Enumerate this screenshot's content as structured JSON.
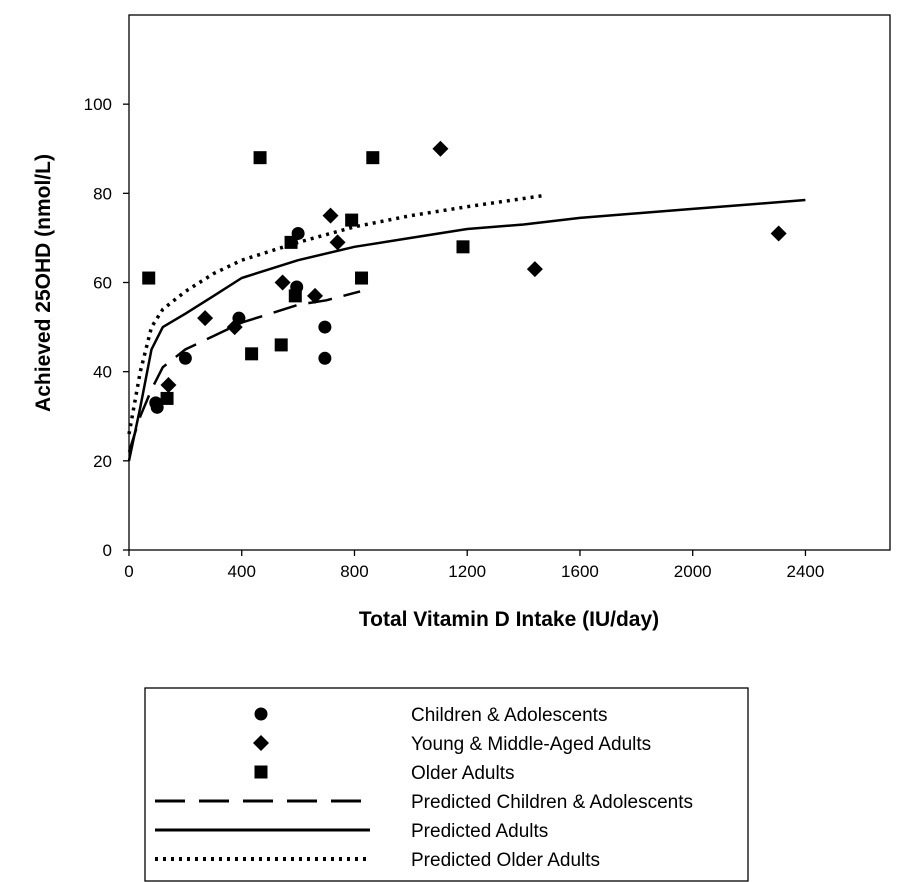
{
  "chart_data": {
    "type": "scatter",
    "xlabel": "Total Vitamin D Intake (IU/day)",
    "ylabel": "Achieved 25OHD (nmol/L)",
    "xlim": [
      0,
      2700
    ],
    "ylim": [
      0,
      120
    ],
    "xticks": [
      0,
      400,
      800,
      1200,
      1600,
      2000,
      2400
    ],
    "yticks": [
      0,
      20,
      40,
      60,
      80,
      100
    ],
    "grid": false,
    "legend_position": "bottom",
    "series": [
      {
        "name": "Children & Adolescents",
        "kind": "points",
        "marker": "circle",
        "color": "#000000",
        "points": [
          [
            95,
            33
          ],
          [
            100,
            32
          ],
          [
            200,
            43
          ],
          [
            390,
            52
          ],
          [
            595,
            59
          ],
          [
            600,
            71
          ],
          [
            695,
            43
          ],
          [
            695,
            50
          ]
        ]
      },
      {
        "name": "Young & Middle-Aged Adults",
        "kind": "points",
        "marker": "diamond",
        "color": "#000000",
        "points": [
          [
            140,
            37
          ],
          [
            270,
            52
          ],
          [
            375,
            50
          ],
          [
            545,
            60
          ],
          [
            660,
            57
          ],
          [
            715,
            75
          ],
          [
            740,
            69
          ],
          [
            1105,
            90
          ],
          [
            1440,
            63
          ],
          [
            2305,
            71
          ]
        ]
      },
      {
        "name": "Older Adults",
        "kind": "points",
        "marker": "square",
        "color": "#000000",
        "points": [
          [
            70,
            61
          ],
          [
            135,
            34
          ],
          [
            435,
            44
          ],
          [
            465,
            88
          ],
          [
            540,
            46
          ],
          [
            575,
            69
          ],
          [
            590,
            57
          ],
          [
            790,
            74
          ],
          [
            825,
            61
          ],
          [
            865,
            88
          ],
          [
            1185,
            68
          ]
        ]
      },
      {
        "name": "Predicted Children & Adolescents",
        "kind": "line",
        "dash": "dashed",
        "color": "#000000",
        "points": [
          [
            0,
            22
          ],
          [
            40,
            30
          ],
          [
            80,
            36
          ],
          [
            120,
            41
          ],
          [
            160,
            43
          ],
          [
            200,
            45
          ],
          [
            300,
            48
          ],
          [
            400,
            51
          ],
          [
            500,
            53
          ],
          [
            600,
            55
          ],
          [
            700,
            56
          ],
          [
            820,
            58
          ]
        ]
      },
      {
        "name": "Predicted Adults",
        "kind": "line",
        "dash": "solid",
        "color": "#000000",
        "points": [
          [
            0,
            20
          ],
          [
            40,
            32
          ],
          [
            80,
            45
          ],
          [
            120,
            50
          ],
          [
            200,
            53
          ],
          [
            300,
            57
          ],
          [
            400,
            61
          ],
          [
            500,
            63
          ],
          [
            600,
            65
          ],
          [
            800,
            68
          ],
          [
            1000,
            70
          ],
          [
            1200,
            72
          ],
          [
            1400,
            73
          ],
          [
            1600,
            74.5
          ],
          [
            1800,
            75.5
          ],
          [
            2000,
            76.5
          ],
          [
            2200,
            77.5
          ],
          [
            2400,
            78.5
          ]
        ]
      },
      {
        "name": "Predicted Older Adults",
        "kind": "line",
        "dash": "dotted",
        "color": "#000000",
        "points": [
          [
            0,
            26
          ],
          [
            40,
            40
          ],
          [
            80,
            50
          ],
          [
            120,
            54
          ],
          [
            200,
            58
          ],
          [
            300,
            62
          ],
          [
            400,
            65
          ],
          [
            500,
            67
          ],
          [
            600,
            69
          ],
          [
            800,
            72.5
          ],
          [
            1000,
            75
          ],
          [
            1200,
            77
          ],
          [
            1470,
            79.5
          ]
        ]
      }
    ]
  }
}
